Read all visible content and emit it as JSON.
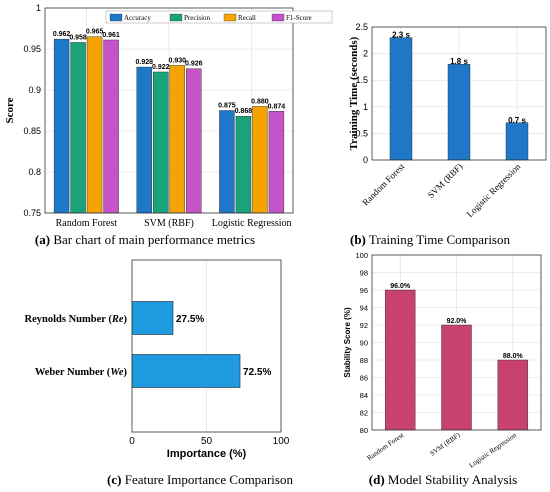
{
  "captions": [
    {
      "letter": "(a)",
      "text": " Bar chart of main performance metrics"
    },
    {
      "letter": "(b)",
      "text": " Training Time Comparison"
    },
    {
      "letter": "(c)",
      "text": " Feature Importance Comparison"
    },
    {
      "letter": "(d)",
      "text": " Model Stability Analysis"
    }
  ],
  "colors": {
    "accuracy": "#1f77c8",
    "precision": "#1aa37a",
    "recall": "#f5a300",
    "f1": "#c454c8",
    "time": "#1f77c8",
    "importance": "#1e9be0",
    "stability": "#c8426f"
  },
  "chart_data": [
    {
      "id": "a",
      "type": "bar",
      "categories": [
        "Random Forest",
        "SVM (RBF)",
        "Logistic Regression"
      ],
      "series": [
        {
          "name": "Accuracy",
          "values": [
            0.962,
            0.928,
            0.875
          ],
          "labels": [
            "0.962",
            "0.928",
            "0.875"
          ]
        },
        {
          "name": "Precision",
          "values": [
            0.958,
            0.922,
            0.868
          ],
          "labels": [
            "0.958",
            "0.922",
            "0.868"
          ]
        },
        {
          "name": "Recall",
          "values": [
            0.965,
            0.93,
            0.88
          ],
          "labels": [
            "0.965",
            "0.930",
            "0.880"
          ]
        },
        {
          "name": "F1-Score",
          "values": [
            0.961,
            0.926,
            0.874
          ],
          "labels": [
            "0.961",
            "0.926",
            "0.874"
          ]
        }
      ],
      "ylabel": "Score",
      "ylim": [
        0.75,
        1.0
      ],
      "yticks": [
        "0.75",
        "0.8",
        "0.85",
        "0.9",
        "0.95",
        "1"
      ],
      "legend": "top-center",
      "grid": true
    },
    {
      "id": "b",
      "type": "bar",
      "categories": [
        "Random Forest",
        "SVM (RBF)",
        "Logistic Regression"
      ],
      "values": [
        2.3,
        1.8,
        0.7
      ],
      "labels": [
        "2.3 s",
        "1.8 s",
        "0.7 s"
      ],
      "ylabel": "Training Time (seconds)",
      "ylim": [
        0,
        2.5
      ],
      "yticks": [
        "0",
        "0.5",
        "1",
        "1.5",
        "2",
        "2.5"
      ],
      "grid": true
    },
    {
      "id": "c",
      "type": "bar",
      "orientation": "horizontal",
      "categories": [
        {
          "pre": "Reynolds Number (",
          "sym": "Re",
          "post": ")"
        },
        {
          "pre": "Weber Number (",
          "sym": "We",
          "post": ")"
        }
      ],
      "values": [
        27.5,
        72.5
      ],
      "labels": [
        "27.5%",
        "72.5%"
      ],
      "xlabel": "Importance (%)",
      "xlim": [
        0,
        100
      ],
      "xticks": [
        "0",
        "50",
        "100"
      ],
      "grid": true
    },
    {
      "id": "d",
      "type": "bar",
      "categories": [
        "Random Forest",
        "SVM (RBF)",
        "Logistic Regression"
      ],
      "values": [
        96.0,
        92.0,
        88.0
      ],
      "labels": [
        "96.0%",
        "92.0%",
        "88.0%"
      ],
      "ylabel": "Stability Score (%)",
      "ylim": [
        80,
        100
      ],
      "yticks": [
        "80",
        "82",
        "84",
        "86",
        "88",
        "90",
        "92",
        "94",
        "96",
        "98",
        "100"
      ],
      "grid": true
    }
  ]
}
